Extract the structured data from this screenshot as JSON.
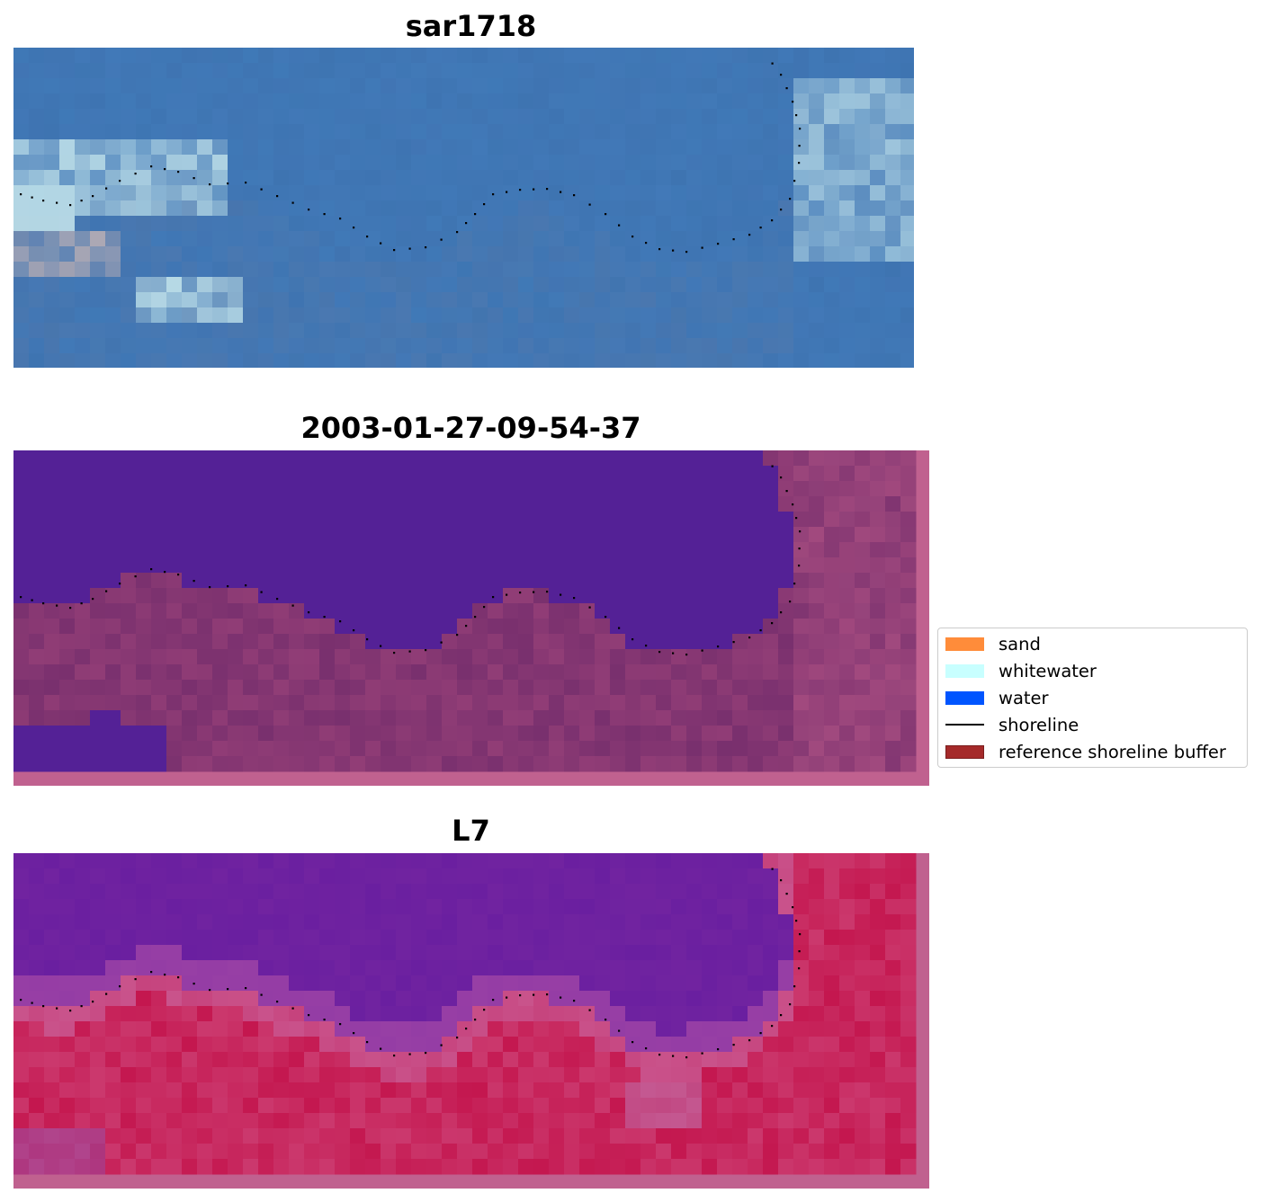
{
  "panels": [
    {
      "title": "sar1718",
      "style": "rgb"
    },
    {
      "title": "2003-01-27-09-54-37",
      "style": "classified"
    },
    {
      "title": "L7",
      "style": "index"
    }
  ],
  "legend": {
    "items": [
      {
        "label": "sand",
        "color": "#ff8c3a",
        "kind": "patch"
      },
      {
        "label": "whitewater",
        "color": "#c8ffff",
        "kind": "patch"
      },
      {
        "label": "water",
        "color": "#0055ff",
        "kind": "patch"
      },
      {
        "label": "shoreline",
        "color": "#000000",
        "kind": "line"
      },
      {
        "label": "reference shoreline buffer",
        "color": "#a52a2a",
        "kind": "patch"
      }
    ]
  },
  "colors": {
    "water_class": "#542196",
    "land_class": "#79306e",
    "buffer_edge": "#c0618f",
    "index_water": "#6a1fa0",
    "index_land": "#c4174f",
    "rgb_sea": "#3f79b7",
    "rgb_foam": "#cfeef0"
  }
}
